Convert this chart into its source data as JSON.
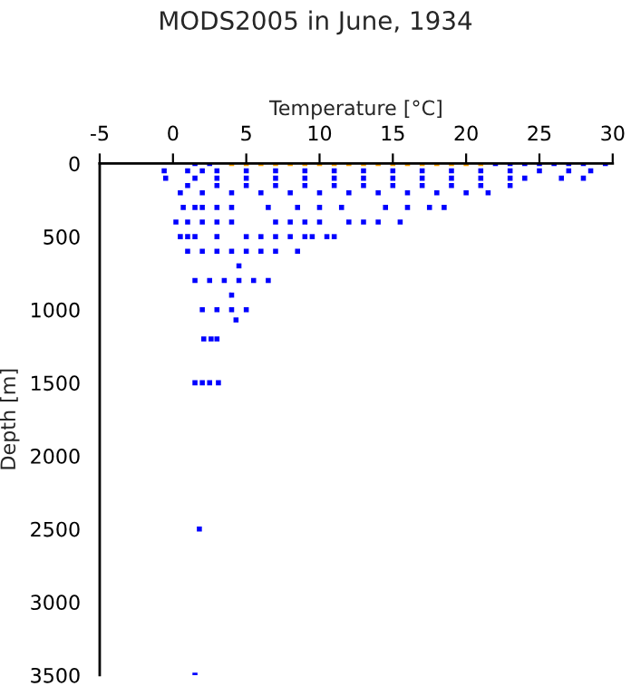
{
  "chart_data": {
    "type": "scatter",
    "title": "MODS2005 in June, 1934",
    "xlabel": "Temperature [°C]",
    "ylabel": "Depth [m]",
    "xlim": [
      -5,
      30
    ],
    "xticks": [
      -5,
      0,
      5,
      10,
      15,
      20,
      25,
      30
    ],
    "ylim": [
      3500,
      0
    ],
    "yticks": [
      0,
      500,
      1000,
      1500,
      2000,
      2500,
      3000,
      3500
    ],
    "marker": "square",
    "grid": false,
    "legend": false,
    "series": [
      {
        "color": "#0000ff",
        "x": [
          1.5,
          2.5,
          22,
          23,
          24,
          25,
          26,
          27,
          28,
          29.5,
          -0.6,
          1,
          2,
          3,
          5,
          7,
          9,
          11,
          13,
          15,
          17,
          19,
          21,
          23,
          25,
          27,
          28.5,
          -0.5,
          1.5,
          3,
          5,
          7,
          9,
          11,
          13,
          15,
          17,
          19,
          21,
          23,
          24,
          26.5,
          28,
          1,
          3,
          5,
          7,
          9,
          11,
          13,
          15,
          17,
          19,
          21,
          23,
          0.5,
          2,
          4,
          6,
          8,
          10,
          12,
          14,
          16,
          18,
          20,
          21.5,
          0.7,
          1.5,
          2,
          3,
          4,
          6.5,
          8.5,
          10,
          11.5,
          14.5,
          16,
          17.5,
          18.5,
          0.2,
          1,
          2,
          3,
          4,
          7,
          8,
          9,
          10,
          12,
          13,
          14,
          15.5,
          0.5,
          1,
          1.5,
          3,
          5,
          6,
          7,
          8,
          9,
          9.5,
          10.5,
          11,
          1,
          2,
          3,
          4,
          5,
          6,
          7,
          8.5,
          4.5,
          1.5,
          2.5,
          3.5,
          4.5,
          5.5,
          6.5,
          4,
          2,
          3,
          4,
          5,
          4.3,
          2.1,
          2.6,
          3.0,
          1.5,
          2,
          2.5,
          3.1,
          1.8,
          1.5
        ],
        "values": [
          0,
          0,
          0,
          0,
          0,
          0,
          0,
          0,
          0,
          0,
          50,
          50,
          50,
          50,
          50,
          50,
          50,
          50,
          50,
          50,
          50,
          50,
          50,
          50,
          50,
          50,
          50,
          100,
          100,
          100,
          100,
          100,
          100,
          100,
          100,
          100,
          100,
          100,
          100,
          100,
          100,
          100,
          100,
          150,
          150,
          150,
          150,
          150,
          150,
          150,
          150,
          150,
          150,
          150,
          150,
          200,
          200,
          200,
          200,
          200,
          200,
          200,
          200,
          200,
          200,
          200,
          200,
          300,
          300,
          300,
          300,
          300,
          300,
          300,
          300,
          300,
          300,
          300,
          300,
          300,
          400,
          400,
          400,
          400,
          400,
          400,
          400,
          400,
          400,
          400,
          400,
          400,
          400,
          500,
          500,
          500,
          500,
          500,
          500,
          500,
          500,
          500,
          500,
          500,
          500,
          600,
          600,
          600,
          600,
          600,
          600,
          600,
          600,
          700,
          800,
          800,
          800,
          800,
          800,
          800,
          900,
          1000,
          1000,
          1000,
          1000,
          1070,
          1200,
          1200,
          1200,
          1500,
          1500,
          1500,
          1500,
          2500,
          3500
        ]
      },
      {
        "color": "#ffa500",
        "x": [
          4,
          5,
          6,
          7,
          8,
          9,
          10,
          11,
          12,
          13,
          14,
          15,
          16,
          17,
          18,
          19,
          20,
          21
        ],
        "values": [
          0,
          0,
          0,
          0,
          0,
          0,
          0,
          0,
          0,
          0,
          0,
          0,
          0,
          0,
          0,
          0,
          0,
          0
        ]
      }
    ]
  }
}
